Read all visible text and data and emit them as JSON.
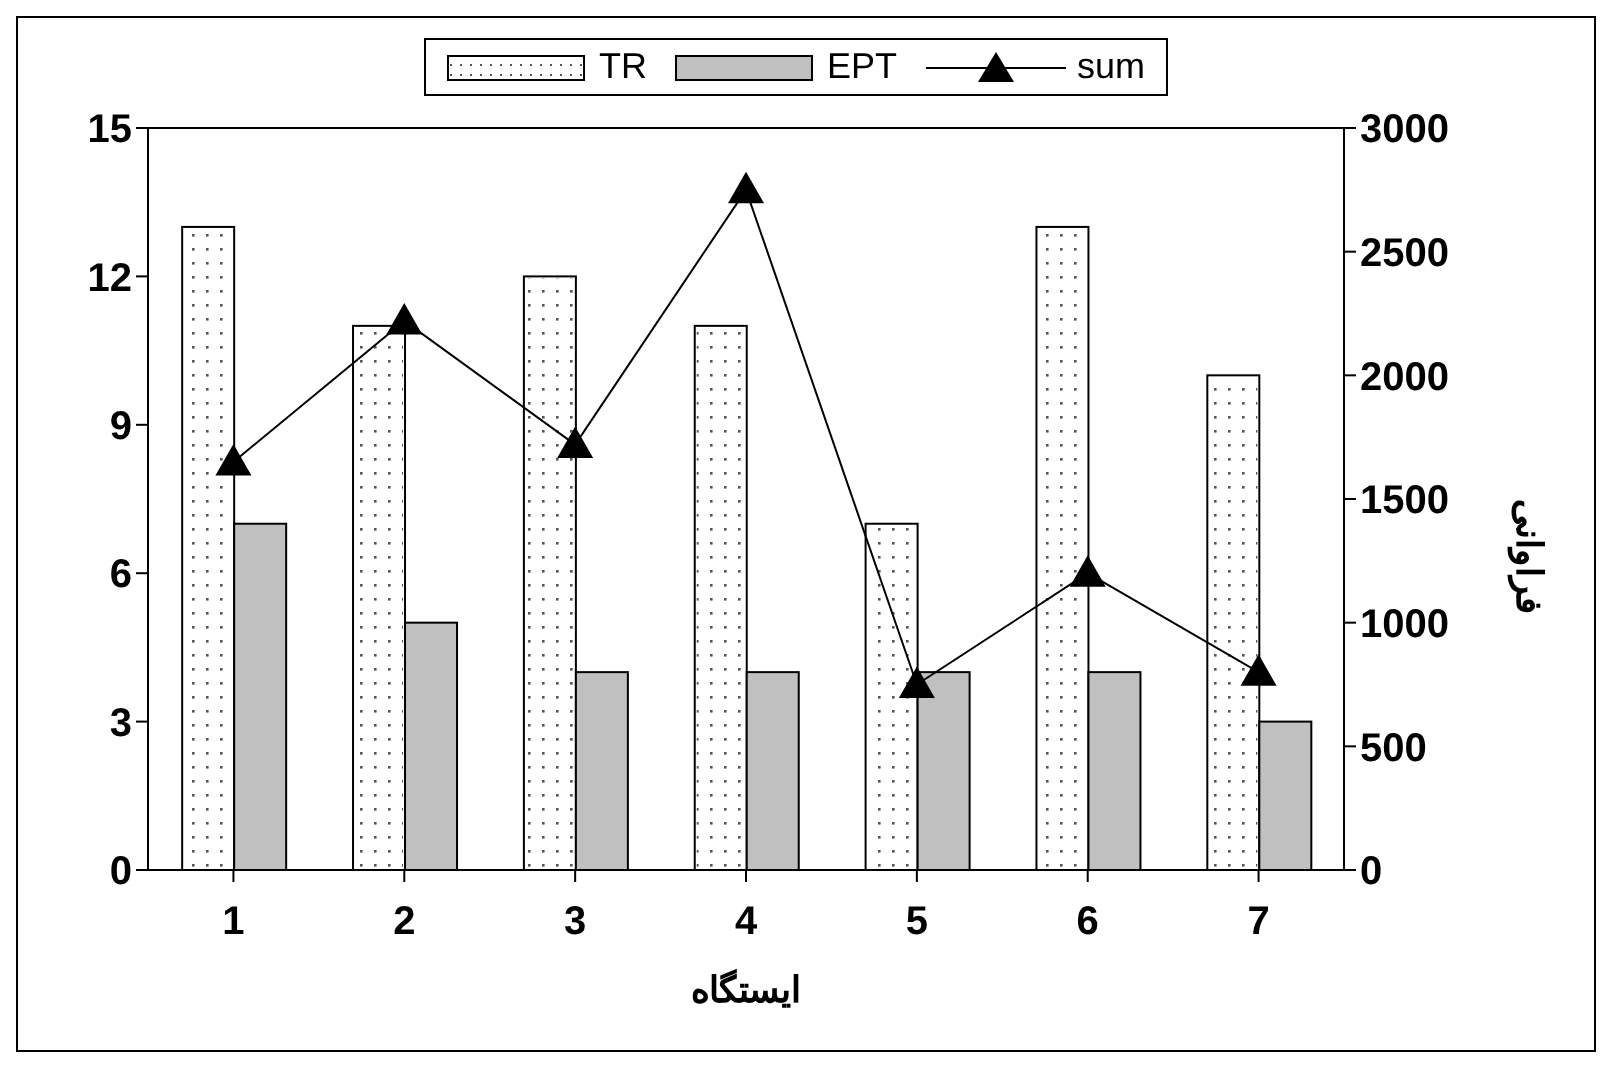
{
  "chart_data": {
    "type": "bar",
    "categories": [
      "1",
      "2",
      "3",
      "4",
      "5",
      "6",
      "7"
    ],
    "series": [
      {
        "name": "TR",
        "color": "#ffffff",
        "values": [
          13,
          11,
          12,
          11,
          7,
          13,
          10
        ]
      },
      {
        "name": "EPT",
        "color": "#c0c0c0",
        "values": [
          7,
          5,
          4,
          4,
          4,
          4,
          3
        ]
      },
      {
        "name": "sum",
        "type": "line",
        "axis": "y2",
        "color": "#000000",
        "values": [
          1650,
          2220,
          1720,
          2750,
          750,
          1200,
          800
        ]
      }
    ],
    "ylim": [
      0,
      15
    ],
    "yticks": [
      0,
      3,
      6,
      9,
      12,
      15
    ],
    "y2lim": [
      0,
      3000
    ],
    "y2ticks": [
      0,
      500,
      1000,
      1500,
      2000,
      2500,
      3000
    ],
    "xlabel": "ایستگاه",
    "y2label": "فراوانی",
    "legend": "top",
    "grid": false,
    "marker": "triangle",
    "line_style": "solid"
  }
}
